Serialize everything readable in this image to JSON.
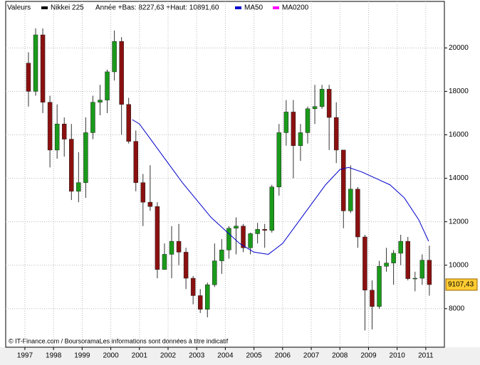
{
  "chart_data": {
    "type": "candlestick",
    "header_label": "Valeurs",
    "range_note": "Année +Bas: 8227,63 +Haut: 10891,60",
    "source": "© IT-Finance.com / BoursoramaLes informations sont données à titre indicatif",
    "candles": {
      "name": "Nikkei 225",
      "color": "#000000",
      "up_color": "#1a9a1a",
      "down_color": "#8b1010",
      "x": [
        1997.125,
        1997.375,
        1997.625,
        1997.875,
        1998.125,
        1998.375,
        1998.625,
        1998.875,
        1999.125,
        1999.375,
        1999.625,
        1999.875,
        2000.125,
        2000.375,
        2000.625,
        2000.875,
        2001.125,
        2001.375,
        2001.625,
        2001.875,
        2002.125,
        2002.375,
        2002.625,
        2002.875,
        2003.125,
        2003.375,
        2003.625,
        2003.875,
        2004.125,
        2004.375,
        2004.625,
        2004.875,
        2005.125,
        2005.375,
        2005.625,
        2005.875,
        2006.125,
        2006.375,
        2006.625,
        2006.875,
        2007.125,
        2007.375,
        2007.625,
        2007.875,
        2008.125,
        2008.375,
        2008.625,
        2008.875,
        2009.125,
        2009.375,
        2009.625,
        2009.875,
        2010.125,
        2010.375,
        2010.625,
        2010.875,
        2011.125
      ],
      "open": [
        19300,
        18000,
        20600,
        17500,
        15300,
        16500,
        15800,
        13400,
        13800,
        16100,
        17500,
        17600,
        18900,
        20300,
        17400,
        15700,
        13800,
        12900,
        12700,
        9800,
        10500,
        11100,
        10600,
        9400,
        8600,
        7970,
        9100,
        10200,
        10700,
        11700,
        11800,
        10800,
        11450,
        11650,
        11600,
        13600,
        16100,
        17050,
        15500,
        16100,
        17200,
        17300,
        18100,
        16800,
        15300,
        12500,
        13500,
        11300,
        8850,
        8100,
        9950,
        10100,
        10550,
        11100,
        9380,
        9400,
        10230
      ],
      "high": [
        19800,
        20900,
        20900,
        17800,
        17400,
        16800,
        16500,
        15200,
        16800,
        17800,
        18300,
        19000,
        20800,
        20500,
        17700,
        16200,
        14200,
        14600,
        12900,
        11000,
        11800,
        11900,
        10800,
        9500,
        8900,
        9200,
        11000,
        11200,
        11800,
        12200,
        11900,
        11500,
        11950,
        11900,
        13700,
        16500,
        17600,
        17600,
        16500,
        17300,
        18300,
        18300,
        18300,
        17500,
        15300,
        14600,
        13600,
        11400,
        9300,
        10200,
        10800,
        10700,
        11400,
        11300,
        9700,
        10500,
        10900
      ],
      "low": [
        17300,
        17800,
        17000,
        14500,
        14900,
        15000,
        13000,
        12900,
        13100,
        15800,
        16900,
        17000,
        18500,
        16000,
        15600,
        13400,
        11800,
        12500,
        9400,
        9800,
        9400,
        10000,
        8900,
        8200,
        7800,
        7600,
        9000,
        9600,
        10300,
        10500,
        10600,
        10500,
        11000,
        10800,
        11500,
        13200,
        15500,
        14000,
        14800,
        15600,
        16500,
        17200,
        15300,
        14700,
        11700,
        12400,
        10800,
        7000,
        7050,
        8000,
        9700,
        9100,
        10000,
        9300,
        8800,
        9100,
        8600
      ],
      "close": [
        18000,
        20600,
        17500,
        15300,
        16500,
        15800,
        13400,
        13800,
        16100,
        17500,
        17600,
        18900,
        20300,
        17400,
        15700,
        13800,
        12900,
        12700,
        9800,
        10500,
        11100,
        10600,
        9400,
        8600,
        7970,
        9100,
        10200,
        10700,
        11700,
        11800,
        10800,
        11450,
        11650,
        11600,
        13600,
        16100,
        17050,
        15500,
        16100,
        17200,
        17300,
        18100,
        16800,
        15300,
        12500,
        13500,
        11300,
        8850,
        8100,
        9950,
        10100,
        10550,
        11100,
        9380,
        9400,
        10230,
        9107.43
      ]
    },
    "lines": [
      {
        "name": "MA50",
        "color": "#0000cc",
        "x": [
          2000.75,
          2001,
          2001.5,
          2002,
          2002.5,
          2003,
          2003.5,
          2004,
          2004.5,
          2005,
          2005.5,
          2006,
          2006.5,
          2007,
          2007.5,
          2008,
          2008.3,
          2008.75,
          2009.25,
          2009.75,
          2010.25,
          2010.75,
          2011.1
        ],
        "values": [
          16700,
          16500,
          15600,
          14700,
          13800,
          13000,
          12200,
          11600,
          11000,
          10600,
          10500,
          11000,
          11900,
          12800,
          13700,
          14400,
          14500,
          14300,
          14000,
          13700,
          13100,
          12100,
          11100
        ]
      },
      {
        "name": "MA0200",
        "color": "#ff00ff"
      }
    ],
    "last_price": {
      "value": 9107.43,
      "label": "9107,43"
    },
    "xlim": [
      1996.33,
      2011.65
    ],
    "ylim": [
      6225,
      22140
    ],
    "xticks": [
      1997,
      1998,
      1999,
      2000,
      2001,
      2002,
      2003,
      2004,
      2005,
      2006,
      2007,
      2008,
      2009,
      2010,
      2011
    ],
    "yticks": [
      8000,
      10000,
      12000,
      14000,
      16000,
      18000,
      20000
    ],
    "grid": true
  }
}
